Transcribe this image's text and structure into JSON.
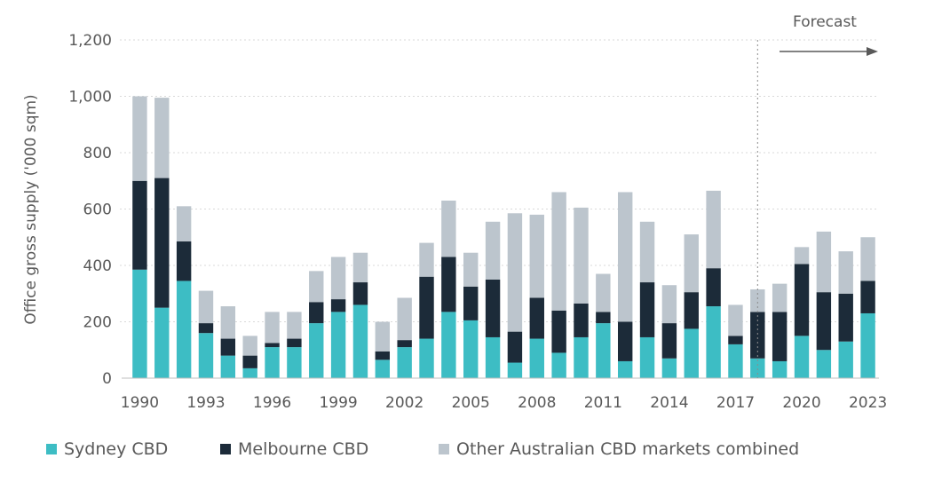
{
  "chart_data": {
    "type": "bar",
    "stacked": true,
    "ylabel": "Office gross supply ('000 sqm)",
    "ylim": [
      0,
      1200
    ],
    "yticks": [
      0,
      200,
      400,
      600,
      800,
      1000,
      1200
    ],
    "ytick_labels": [
      "0",
      "200",
      "400",
      "600",
      "800",
      "1,000",
      "1,200"
    ],
    "x": [
      1990,
      1991,
      1992,
      1993,
      1994,
      1995,
      1996,
      1997,
      1998,
      1999,
      2000,
      2001,
      2002,
      2003,
      2004,
      2005,
      2006,
      2007,
      2008,
      2009,
      2010,
      2011,
      2012,
      2013,
      2014,
      2015,
      2016,
      2017,
      2018,
      2019,
      2020,
      2021,
      2022,
      2023
    ],
    "xtick_labels": [
      "1990",
      "1993",
      "1996",
      "1999",
      "2002",
      "2005",
      "2008",
      "2011",
      "2014",
      "2017",
      "2020",
      "2023"
    ],
    "series": [
      {
        "name": "Sydney CBD",
        "color": "#3dbdc4",
        "values": [
          385,
          250,
          345,
          160,
          80,
          35,
          110,
          110,
          195,
          235,
          260,
          65,
          110,
          140,
          235,
          205,
          145,
          55,
          140,
          90,
          145,
          195,
          60,
          145,
          70,
          175,
          255,
          120,
          70,
          60,
          150,
          100,
          130,
          230
        ]
      },
      {
        "name": "Melbourne CBD",
        "color": "#1c2b39",
        "values": [
          315,
          460,
          140,
          35,
          60,
          45,
          15,
          30,
          75,
          45,
          80,
          30,
          25,
          220,
          195,
          120,
          205,
          110,
          145,
          150,
          120,
          40,
          140,
          195,
          125,
          130,
          135,
          30,
          165,
          175,
          255,
          205,
          170,
          115
        ]
      },
      {
        "name": "Other Australian CBD markets combined",
        "color": "#bcc5cd",
        "values": [
          300,
          285,
          125,
          115,
          115,
          70,
          110,
          95,
          110,
          150,
          105,
          105,
          150,
          120,
          200,
          120,
          205,
          420,
          295,
          420,
          340,
          135,
          460,
          215,
          135,
          205,
          275,
          110,
          80,
          100,
          60,
          215,
          150,
          155
        ]
      }
    ],
    "annotation": "Forecast",
    "forecast_start_year": 2019,
    "legend_position": "bottom",
    "grid": "horizontal, dotted",
    "background": "#ffffff"
  }
}
